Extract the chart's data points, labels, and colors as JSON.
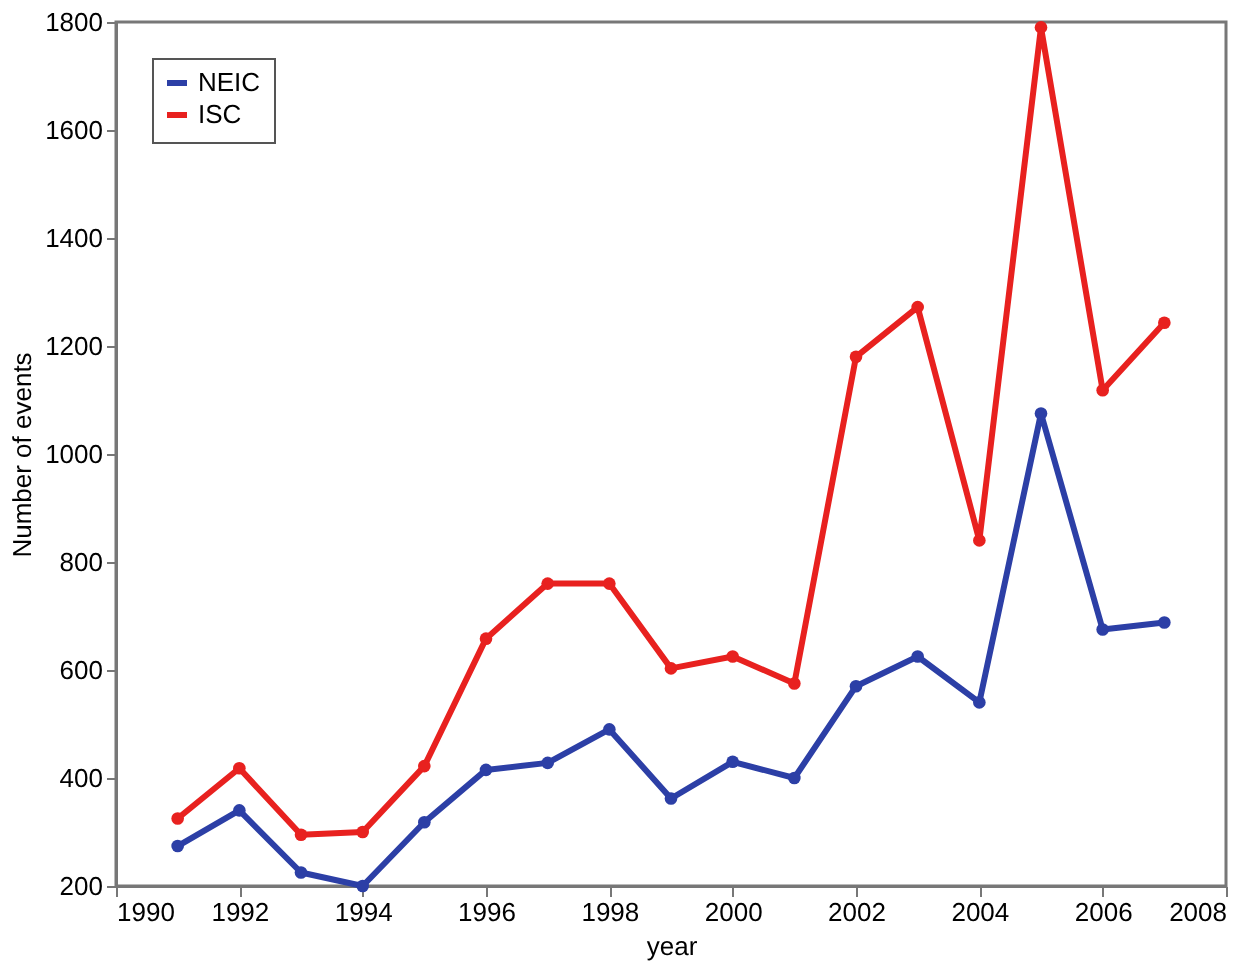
{
  "chart_data": {
    "type": "line",
    "xlabel": "year",
    "ylabel": "Number of events",
    "x": [
      1991,
      1992,
      1993,
      1994,
      1995,
      1996,
      1997,
      1998,
      1999,
      2000,
      2001,
      2002,
      2003,
      2004,
      2005,
      2006,
      2007
    ],
    "series": [
      {
        "name": "NEIC",
        "color": "#2c3fa6",
        "values": [
          274,
          340,
          225,
          200,
          318,
          415,
          428,
          490,
          362,
          430,
          400,
          570,
          625,
          540,
          1075,
          675,
          688
        ]
      },
      {
        "name": "ISC",
        "color": "#e8211f",
        "values": [
          325,
          418,
          295,
          300,
          422,
          658,
          760,
          760,
          603,
          625,
          575,
          1180,
          1272,
          840,
          1790,
          1118,
          1243
        ]
      }
    ],
    "xlim": [
      1990,
      2008
    ],
    "xticks": [
      1990,
      1992,
      1994,
      1996,
      1998,
      2000,
      2002,
      2004,
      2006,
      2008
    ],
    "ylim": [
      200,
      1800
    ],
    "yticks": [
      200,
      400,
      600,
      800,
      1000,
      1200,
      1400,
      1600,
      1800
    ],
    "grid": false,
    "legend": "top left",
    "marker": "circle",
    "line_style": "solid"
  }
}
